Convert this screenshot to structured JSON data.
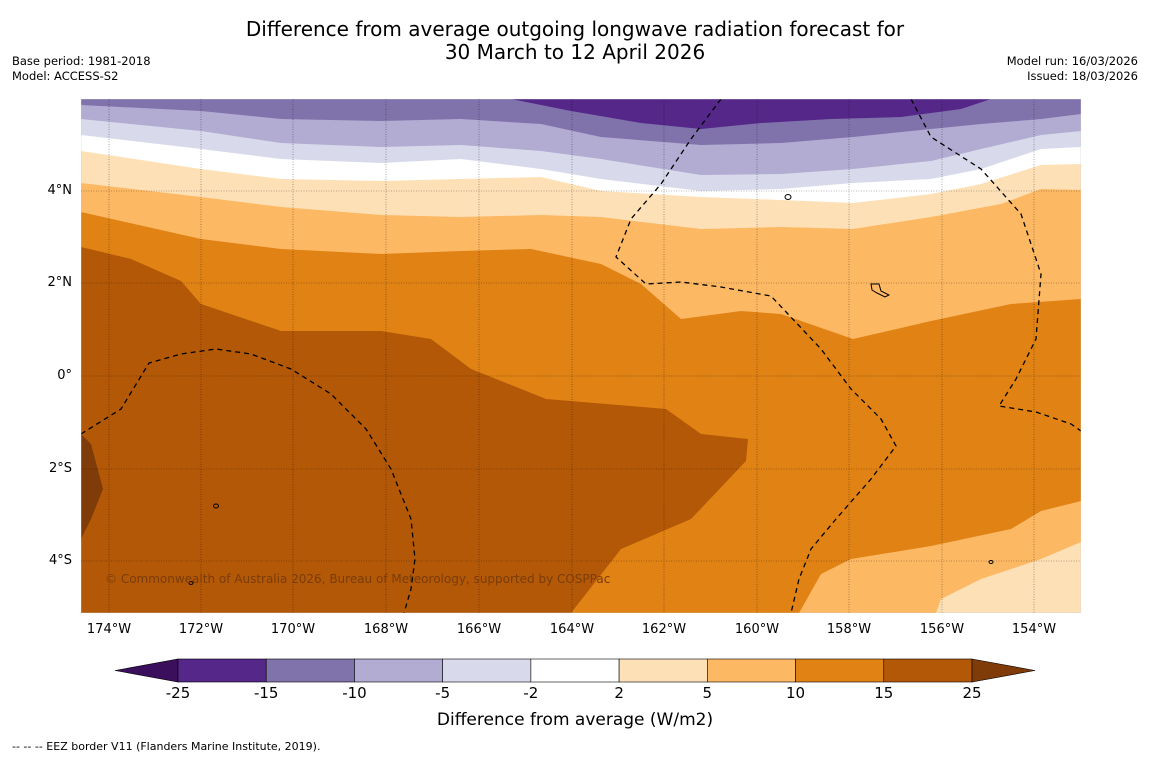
{
  "title": {
    "line1": "Difference from average outgoing longwave radiation forecast for",
    "line2": "30 March to 12 April 2026"
  },
  "meta_left": {
    "base_period": "Base period: 1981-2018",
    "model": "Model: ACCESS-S2"
  },
  "meta_right": {
    "model_run": "Model run: 16/03/2026",
    "issued": "Issued: 18/03/2026"
  },
  "map": {
    "latitude_labels": [
      "4°N",
      "2°N",
      "0°",
      "2°S",
      "4°S"
    ],
    "longitude_labels": [
      "174°W",
      "172°W",
      "170°W",
      "168°W",
      "166°W",
      "164°W",
      "162°W",
      "160°W",
      "158°W",
      "156°W",
      "154°W"
    ],
    "copyright": "© Commonwealth of Australia 2026, Bureau of Meteorology, supported by COSPPac",
    "colors": {
      "lt_m25": "#3b0f5c",
      "m25_m15": "#542788",
      "m15_m10": "#8073ac",
      "m10_m5": "#b2abd2",
      "m5_m2": "#d8daeb",
      "m2_2": "#ffffff",
      "p2_5": "#fee0b6",
      "p5_10": "#fdb863",
      "p10_15": "#e08214",
      "p15_25": "#b35806",
      "gt_25": "#7f3b08"
    }
  },
  "colorbar": {
    "ticks": [
      "-25",
      "-15",
      "-10",
      "-5",
      "-2",
      "2",
      "5",
      "10",
      "15",
      "25"
    ],
    "colors": [
      "#3b0f5c",
      "#542788",
      "#8073ac",
      "#b2abd2",
      "#d8daeb",
      "#ffffff",
      "#fee0b6",
      "#fdb863",
      "#e08214",
      "#b35806",
      "#7f3b08"
    ],
    "label": "Difference from average (W/m2)"
  },
  "footnote": "--  --  -- EEZ border V11 (Flanders Marine Institute, 2019)."
}
